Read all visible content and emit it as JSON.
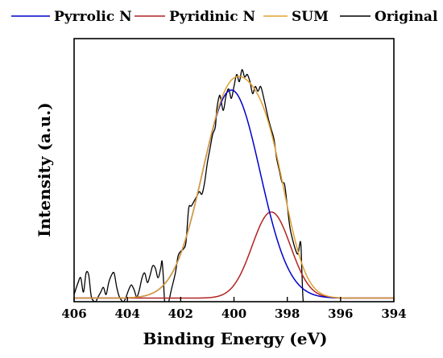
{
  "chart_data": {
    "type": "line",
    "title": "",
    "xlabel": "Binding Energy (eV)",
    "ylabel": "Intensity (a.u.)",
    "xlim": [
      406,
      394
    ],
    "x_reversed": true,
    "ylim": [
      0,
      1.1
    ],
    "x_ticks": [
      406,
      404,
      402,
      400,
      398,
      396,
      394
    ],
    "y_ticks": [],
    "grid": false,
    "legend_position": "top",
    "series": [
      {
        "name": "Pyrrolic N",
        "color": "#0000cc",
        "model": "gaussian",
        "center": 400.1,
        "amplitude": 0.87,
        "sigma": 1.08
      },
      {
        "name": "Pyridinic N",
        "color": "#b22222",
        "model": "gaussian",
        "center": 398.6,
        "amplitude": 0.36,
        "sigma": 0.72
      },
      {
        "name": "SUM",
        "color": "#e0a030",
        "model": "sum",
        "of": [
          "Pyrrolic N",
          "Pyridinic N"
        ]
      },
      {
        "name": "Original",
        "color": "#000000",
        "model": "points",
        "points": [
          [
            406,
            0.03
          ],
          [
            405.85,
            0.08
          ],
          [
            405.75,
            0.1
          ],
          [
            405.65,
            0.04
          ],
          [
            405.55,
            0.12
          ],
          [
            405.45,
            0.11
          ],
          [
            405.35,
            0.02
          ],
          [
            405.2,
            0.0
          ],
          [
            405.1,
            0.02
          ],
          [
            405.0,
            0.04
          ],
          [
            404.9,
            0.06
          ],
          [
            404.8,
            0.03
          ],
          [
            404.7,
            0.08
          ],
          [
            404.6,
            0.11
          ],
          [
            404.5,
            0.12
          ],
          [
            404.4,
            0.06
          ],
          [
            404.3,
            0.02
          ],
          [
            404.15,
            0.0
          ],
          [
            404.05,
            0.02
          ],
          [
            403.95,
            0.05
          ],
          [
            403.85,
            0.07
          ],
          [
            403.75,
            0.05
          ],
          [
            403.65,
            0.02
          ],
          [
            403.55,
            0.05
          ],
          [
            403.45,
            0.1
          ],
          [
            403.35,
            0.12
          ],
          [
            403.25,
            0.08
          ],
          [
            403.15,
            0.11
          ],
          [
            403.05,
            0.15
          ],
          [
            402.95,
            0.14
          ],
          [
            402.85,
            0.1
          ],
          [
            402.75,
            0.14
          ],
          [
            402.7,
            0.17
          ],
          [
            402.65,
            0.1
          ],
          [
            402.6,
            0.0
          ],
          [
            402.5,
            -0.02
          ],
          [
            402.35,
            0.05
          ],
          [
            402.2,
            0.12
          ],
          [
            402.1,
            0.19
          ],
          [
            402.0,
            0.21
          ],
          [
            401.9,
            0.22
          ],
          [
            401.8,
            0.25
          ],
          [
            401.7,
            0.39
          ],
          [
            401.6,
            0.4
          ],
          [
            401.5,
            0.42
          ],
          [
            401.4,
            0.44
          ],
          [
            401.3,
            0.46
          ],
          [
            401.2,
            0.45
          ],
          [
            401.1,
            0.5
          ],
          [
            401.0,
            0.58
          ],
          [
            400.9,
            0.64
          ],
          [
            400.8,
            0.7
          ],
          [
            400.7,
            0.73
          ],
          [
            400.65,
            0.8
          ],
          [
            400.55,
            0.86
          ],
          [
            400.5,
            0.85
          ],
          [
            400.4,
            0.8
          ],
          [
            400.3,
            0.86
          ],
          [
            400.2,
            0.89
          ],
          [
            400.1,
            0.85
          ],
          [
            400.0,
            0.9
          ],
          [
            399.9,
            0.95
          ],
          [
            399.8,
            0.92
          ],
          [
            399.7,
            0.97
          ],
          [
            399.6,
            0.94
          ],
          [
            399.5,
            0.95
          ],
          [
            399.4,
            0.92
          ],
          [
            399.3,
            0.87
          ],
          [
            399.2,
            0.9
          ],
          [
            399.1,
            0.88
          ],
          [
            399.0,
            0.9
          ],
          [
            398.9,
            0.86
          ],
          [
            398.8,
            0.81
          ],
          [
            398.7,
            0.76
          ],
          [
            398.6,
            0.72
          ],
          [
            398.5,
            0.68
          ],
          [
            398.4,
            0.6
          ],
          [
            398.3,
            0.55
          ],
          [
            398.2,
            0.5
          ],
          [
            398.1,
            0.49
          ],
          [
            398.0,
            0.4
          ],
          [
            397.9,
            0.31
          ],
          [
            397.8,
            0.26
          ],
          [
            397.7,
            0.22
          ],
          [
            397.6,
            0.2
          ],
          [
            397.5,
            0.25
          ],
          [
            397.45,
            0.12
          ],
          [
            397.4,
            0.0
          ],
          [
            397.3,
            -0.02
          ]
        ]
      }
    ]
  }
}
